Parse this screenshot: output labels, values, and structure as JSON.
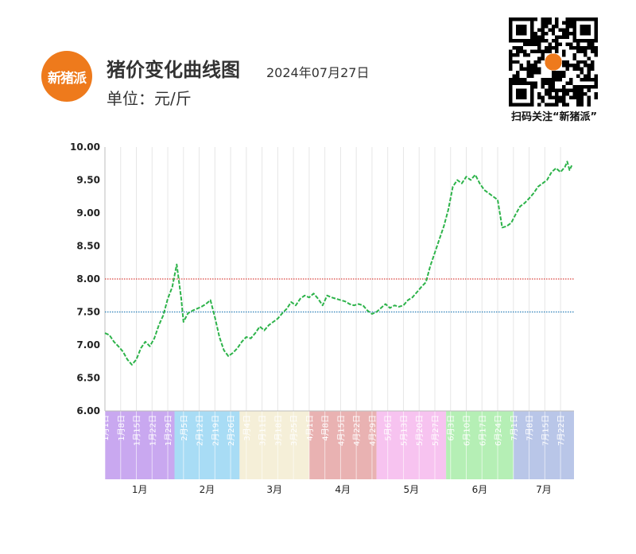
{
  "header": {
    "logo_text": "新猪派",
    "title": "猪价变化曲线图",
    "date": "2024年07月27日",
    "unit": "单位：元/斤",
    "qr_caption": "扫码关注“新猪派”",
    "qr_icon": "qr-code-icon"
  },
  "colors": {
    "line": "#2db34a",
    "ref_red": "#d9413c",
    "ref_blue": "#2a7fb8",
    "logo": "#ee7a1c"
  },
  "chart_data": {
    "type": "line",
    "title": "猪价变化曲线图",
    "ylabel": "单位：元/斤",
    "ylim": [
      6.0,
      10.0
    ],
    "yticks": [
      "6.00",
      "6.50",
      "7.00",
      "7.50",
      "8.00",
      "8.50",
      "9.00",
      "9.50",
      "10.00"
    ],
    "grid": "vertical",
    "reference_lines": [
      {
        "value": 8.0,
        "color": "#d9413c"
      },
      {
        "value": 7.5,
        "color": "#2a7fb8"
      }
    ],
    "x_date_ticks": [
      "1月1日",
      "1月8日",
      "1月15日",
      "1月22日",
      "1月29日",
      "2月5日",
      "2月12日",
      "2月19日",
      "2月26日",
      "3月4日",
      "3月11日",
      "3月18日",
      "3月25日",
      "4月1日",
      "4月8日",
      "4月15日",
      "4月22日",
      "4月29日",
      "5月6日",
      "5月13日",
      "5月20日",
      "5月27日",
      "6月3日",
      "6月10日",
      "6月17日",
      "6月24日",
      "7月1日",
      "7月8日",
      "7月15日",
      "7月22日"
    ],
    "months": [
      {
        "label": "1月",
        "start": "1月1日",
        "end": "1月31日",
        "color": "#c9a8f0"
      },
      {
        "label": "2月",
        "start": "2月1日",
        "end": "2月29日",
        "color": "#a8dcf5"
      },
      {
        "label": "3月",
        "start": "3月1日",
        "end": "3月31日",
        "color": "#f5efd8"
      },
      {
        "label": "4月",
        "start": "4月1日",
        "end": "4月30日",
        "color": "#e9b2b2"
      },
      {
        "label": "5月",
        "start": "5月1日",
        "end": "5月31日",
        "color": "#f7c3f0"
      },
      {
        "label": "6月",
        "start": "6月1日",
        "end": "6月30日",
        "color": "#b5efb5"
      },
      {
        "label": "7月",
        "start": "7月1日",
        "end": "7月27日",
        "color": "#b9c6e8"
      }
    ],
    "series": [
      {
        "points": [
          [
            "1月1日",
            7.18
          ],
          [
            "1月3日",
            7.15
          ],
          [
            "1月5日",
            7.05
          ],
          [
            "1月7日",
            6.98
          ],
          [
            "1月9日",
            6.9
          ],
          [
            "1月11日",
            6.78
          ],
          [
            "1月13日",
            6.7
          ],
          [
            "1月15日",
            6.78
          ],
          [
            "1月17日",
            6.95
          ],
          [
            "1月19日",
            7.05
          ],
          [
            "1月21日",
            6.98
          ],
          [
            "1月23日",
            7.1
          ],
          [
            "1月25日",
            7.3
          ],
          [
            "1月27日",
            7.45
          ],
          [
            "1月29日",
            7.7
          ],
          [
            "1月31日",
            7.88
          ],
          [
            "2月2日",
            8.22
          ],
          [
            "2月4日",
            7.7
          ],
          [
            "2月5日",
            7.35
          ],
          [
            "2月7日",
            7.48
          ],
          [
            "2月9日",
            7.52
          ],
          [
            "2月11日",
            7.55
          ],
          [
            "2月13日",
            7.58
          ],
          [
            "2月15日",
            7.62
          ],
          [
            "2月17日",
            7.68
          ],
          [
            "2月19日",
            7.42
          ],
          [
            "2月21日",
            7.12
          ],
          [
            "2月23日",
            6.92
          ],
          [
            "2月25日",
            6.83
          ],
          [
            "2月27日",
            6.88
          ],
          [
            "2月29日",
            6.95
          ],
          [
            "3月2日",
            7.05
          ],
          [
            "3月4日",
            7.12
          ],
          [
            "3月6日",
            7.1
          ],
          [
            "3月8日",
            7.18
          ],
          [
            "3月10日",
            7.28
          ],
          [
            "3月12日",
            7.22
          ],
          [
            "3月14日",
            7.3
          ],
          [
            "3月16日",
            7.35
          ],
          [
            "3月18日",
            7.4
          ],
          [
            "3月20日",
            7.48
          ],
          [
            "3月22日",
            7.55
          ],
          [
            "3月24日",
            7.65
          ],
          [
            "3月26日",
            7.6
          ],
          [
            "3月28日",
            7.7
          ],
          [
            "3月30日",
            7.75
          ],
          [
            "4月1日",
            7.72
          ],
          [
            "4月3日",
            7.78
          ],
          [
            "4月5日",
            7.7
          ],
          [
            "4月7日",
            7.6
          ],
          [
            "4月9日",
            7.75
          ],
          [
            "4月11日",
            7.72
          ],
          [
            "4月13日",
            7.7
          ],
          [
            "4月15日",
            7.68
          ],
          [
            "4月17日",
            7.66
          ],
          [
            "4月19日",
            7.62
          ],
          [
            "4月21日",
            7.6
          ],
          [
            "4月23日",
            7.62
          ],
          [
            "4月25日",
            7.6
          ],
          [
            "4月27日",
            7.52
          ],
          [
            "4月29日",
            7.47
          ],
          [
            "5月1日",
            7.5
          ],
          [
            "5月3日",
            7.56
          ],
          [
            "5月5日",
            7.62
          ],
          [
            "5月7日",
            7.56
          ],
          [
            "5月9日",
            7.6
          ],
          [
            "5月11日",
            7.58
          ],
          [
            "5月13日",
            7.6
          ],
          [
            "5月15日",
            7.68
          ],
          [
            "5月17日",
            7.72
          ],
          [
            "5月19日",
            7.8
          ],
          [
            "5月21日",
            7.88
          ],
          [
            "5月23日",
            7.95
          ],
          [
            "5月25日",
            8.2
          ],
          [
            "5月27日",
            8.4
          ],
          [
            "5月29日",
            8.6
          ],
          [
            "5月31日",
            8.8
          ],
          [
            "6月2日",
            9.05
          ],
          [
            "6月4日",
            9.4
          ],
          [
            "6月6日",
            9.5
          ],
          [
            "6月8日",
            9.45
          ],
          [
            "6月10日",
            9.55
          ],
          [
            "6月12日",
            9.5
          ],
          [
            "6月14日",
            9.58
          ],
          [
            "6月16日",
            9.45
          ],
          [
            "6月18日",
            9.35
          ],
          [
            "6月20日",
            9.3
          ],
          [
            "6月22日",
            9.25
          ],
          [
            "6月24日",
            9.2
          ],
          [
            "6月26日",
            8.78
          ],
          [
            "6月28日",
            8.8
          ],
          [
            "6月30日",
            8.85
          ],
          [
            "7月2日",
            8.98
          ],
          [
            "7月4日",
            9.1
          ],
          [
            "7月6日",
            9.15
          ],
          [
            "7月8日",
            9.22
          ],
          [
            "7月10日",
            9.3
          ],
          [
            "7月12日",
            9.4
          ],
          [
            "7月14日",
            9.45
          ],
          [
            "7月16日",
            9.5
          ],
          [
            "7月18日",
            9.62
          ],
          [
            "7月20日",
            9.68
          ],
          [
            "7月22日",
            9.62
          ],
          [
            "7月24日",
            9.7
          ],
          [
            "7月25日",
            9.78
          ],
          [
            "7月26日",
            9.65
          ],
          [
            "7月27日",
            9.72
          ]
        ]
      }
    ]
  }
}
